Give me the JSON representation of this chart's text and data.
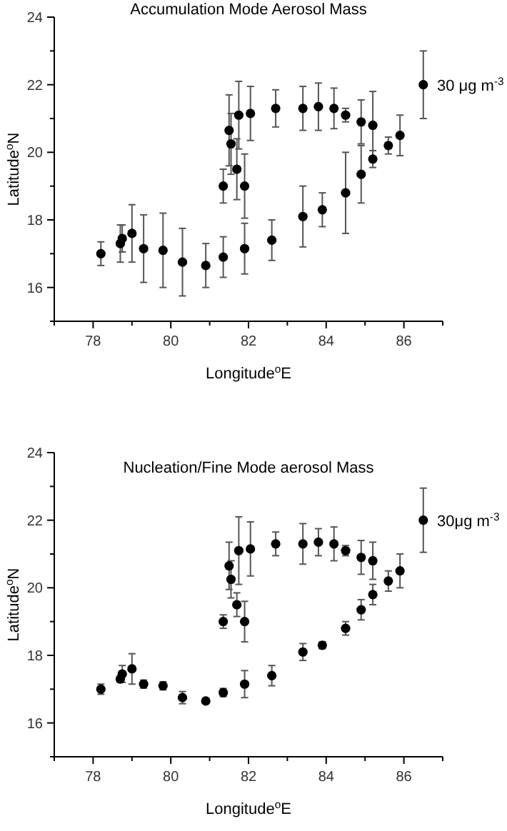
{
  "chart_data": [
    {
      "type": "scatter",
      "title": "Accumulation Mode Aerosol Mass",
      "xlabel": "Longitude$^{o}$E",
      "ylabel": "Latitude$^{o}$N",
      "annotations": [
        "30 μg m$^{-3}$"
      ],
      "marker": "circle",
      "grid": false,
      "xlim": [
        77,
        87
      ],
      "ylim": [
        15,
        24
      ],
      "xticks": [
        {
          "value": 77,
          "label": null
        },
        78,
        {
          "value": 79,
          "label": null
        },
        80,
        {
          "value": 81,
          "label": null
        },
        82,
        {
          "value": 83,
          "label": null
        },
        84,
        {
          "value": 85,
          "label": null
        },
        86,
        {
          "value": 87,
          "label": null
        }
      ],
      "yticks": [
        {
          "value": 15,
          "label": null
        },
        16,
        {
          "value": 17,
          "label": null
        },
        18,
        {
          "value": 19,
          "label": null
        },
        20,
        {
          "value": 21,
          "label": null
        },
        22,
        {
          "value": 23,
          "label": null
        },
        24
      ],
      "series": [
        {
          "color": "#000000",
          "x": [
            78.2,
            78.7,
            78.75,
            79.0,
            79.3,
            79.8,
            80.3,
            80.9,
            81.35,
            81.9,
            82.6,
            83.4,
            83.9,
            84.5,
            84.9,
            85.2,
            85.6,
            85.9,
            86.5,
            81.35,
            81.5,
            81.55,
            81.7,
            81.75,
            81.9,
            82.05,
            82.7,
            83.4,
            83.8,
            84.2,
            84.5,
            84.9,
            85.2
          ],
          "values": [
            17.0,
            17.3,
            17.45,
            17.6,
            17.15,
            17.1,
            16.75,
            16.65,
            16.9,
            17.15,
            17.4,
            18.1,
            18.3,
            18.8,
            19.35,
            19.8,
            20.2,
            20.5,
            22.0,
            19.0,
            20.65,
            20.25,
            19.5,
            21.1,
            19.0,
            21.15,
            21.3,
            21.3,
            21.35,
            21.3,
            21.1,
            20.9,
            20.8
          ],
          "errors": [
            0.35,
            0.55,
            0.4,
            0.85,
            1.0,
            1.1,
            1.0,
            0.65,
            0.6,
            0.75,
            0.6,
            0.9,
            0.5,
            1.2,
            0.85,
            0.25,
            0.25,
            0.6,
            1.0,
            0.5,
            1.05,
            0.9,
            0.9,
            1.0,
            0.95,
            0.8,
            0.55,
            0.65,
            0.7,
            0.6,
            0.2,
            0.65,
            1.0
          ]
        }
      ]
    },
    {
      "type": "scatter",
      "title": "Nucleation/Fine Mode aerosol Mass",
      "xlabel": "Longitude$^{o}$E",
      "ylabel": "Latitude$^{o}$N",
      "annotations": [
        "30μg m$^{-3}$"
      ],
      "marker": "circle",
      "grid": false,
      "xlim": [
        77,
        87
      ],
      "ylim": [
        15,
        24
      ],
      "xticks": [
        {
          "value": 77,
          "label": null
        },
        78,
        {
          "value": 79,
          "label": null
        },
        80,
        {
          "value": 81,
          "label": null
        },
        82,
        {
          "value": 83,
          "label": null
        },
        84,
        {
          "value": 85,
          "label": null
        },
        86,
        {
          "value": 87,
          "label": null
        }
      ],
      "yticks": [
        {
          "value": 15,
          "label": null
        },
        16,
        {
          "value": 17,
          "label": null
        },
        18,
        {
          "value": 19,
          "label": null
        },
        20,
        {
          "value": 21,
          "label": null
        },
        22,
        {
          "value": 23,
          "label": null
        },
        24
      ],
      "series": [
        {
          "color": "#000000",
          "x": [
            78.2,
            78.7,
            78.75,
            79.0,
            79.3,
            79.8,
            80.3,
            80.9,
            81.35,
            81.9,
            82.6,
            83.4,
            83.9,
            84.5,
            84.9,
            85.2,
            85.6,
            85.9,
            86.5,
            81.35,
            81.5,
            81.55,
            81.7,
            81.75,
            81.9,
            82.05,
            82.7,
            83.4,
            83.8,
            84.2,
            84.5,
            84.9,
            85.2
          ],
          "values": [
            17.0,
            17.3,
            17.45,
            17.6,
            17.15,
            17.1,
            16.75,
            16.65,
            16.9,
            17.15,
            17.4,
            18.1,
            18.3,
            18.8,
            19.35,
            19.8,
            20.2,
            20.5,
            22.0,
            19.0,
            20.65,
            20.25,
            19.5,
            21.1,
            19.0,
            21.15,
            21.3,
            21.3,
            21.35,
            21.3,
            21.1,
            20.9,
            20.8
          ],
          "errors": [
            0.15,
            0.1,
            0.25,
            0.45,
            0.12,
            0.12,
            0.18,
            0.05,
            0.12,
            0.4,
            0.3,
            0.25,
            0.1,
            0.2,
            0.3,
            0.3,
            0.3,
            0.5,
            0.95,
            0.2,
            0.7,
            0.55,
            0.35,
            1.0,
            0.6,
            0.8,
            0.35,
            0.6,
            0.4,
            0.5,
            0.15,
            0.5,
            0.55
          ]
        }
      ]
    }
  ]
}
